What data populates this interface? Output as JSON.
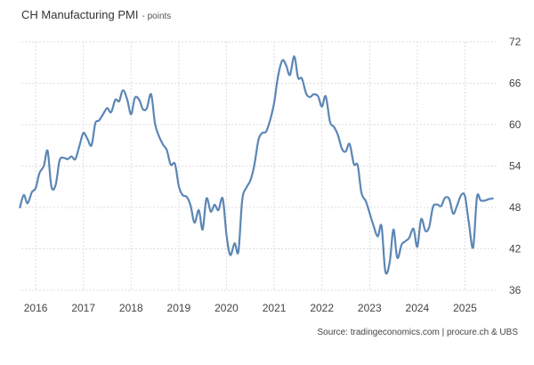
{
  "header": {
    "title": "CH Manufacturing PMI",
    "unit": "- points"
  },
  "footer": {
    "source": "Source: tradingeconomics.com | procure.ch & UBS"
  },
  "colors": {
    "line": "#5b86b5",
    "grid": "#dddddd",
    "axis_text": "#444444"
  },
  "chart_data": {
    "type": "line",
    "title": "CH Manufacturing PMI",
    "ylabel": "points",
    "ylim": [
      36,
      72
    ],
    "yticks": [
      36,
      42,
      48,
      54,
      60,
      66,
      72
    ],
    "xlim": [
      2015.7,
      2025.7
    ],
    "xticks": [
      2016,
      2017,
      2018,
      2019,
      2020,
      2021,
      2022,
      2023,
      2024,
      2025
    ],
    "grid": true,
    "y_axis_side": "right",
    "series": [
      {
        "x": [
          2015.67,
          2015.75,
          2015.83,
          2015.92,
          2016.0,
          2016.08,
          2016.17,
          2016.25,
          2016.33,
          2016.42,
          2016.5,
          2016.58,
          2016.67,
          2016.75,
          2016.83,
          2016.92,
          2017.0,
          2017.08,
          2017.17,
          2017.25,
          2017.33,
          2017.42,
          2017.5,
          2017.58,
          2017.67,
          2017.75,
          2017.83,
          2017.92,
          2018.0,
          2018.08,
          2018.17,
          2018.25,
          2018.33,
          2018.42,
          2018.5,
          2018.58,
          2018.67,
          2018.75,
          2018.83,
          2018.92,
          2019.0,
          2019.08,
          2019.17,
          2019.25,
          2019.33,
          2019.42,
          2019.5,
          2019.58,
          2019.67,
          2019.75,
          2019.83,
          2019.92,
          2020.0,
          2020.08,
          2020.17,
          2020.25,
          2020.33,
          2020.42,
          2020.5,
          2020.58,
          2020.67,
          2020.75,
          2020.83,
          2020.92,
          2021.0,
          2021.08,
          2021.17,
          2021.25,
          2021.33,
          2021.42,
          2021.5,
          2021.58,
          2021.67,
          2021.75,
          2021.83,
          2021.92,
          2022.0,
          2022.08,
          2022.17,
          2022.25,
          2022.33,
          2022.42,
          2022.5,
          2022.58,
          2022.67,
          2022.75,
          2022.83,
          2022.92,
          2023.0,
          2023.08,
          2023.17,
          2023.25,
          2023.33,
          2023.42,
          2023.5,
          2023.58,
          2023.67,
          2023.75,
          2023.83,
          2023.92,
          2024.0,
          2024.08,
          2024.17,
          2024.25,
          2024.33,
          2024.42,
          2024.5,
          2024.58,
          2024.67,
          2024.75,
          2024.83,
          2024.92,
          2025.0,
          2025.08,
          2025.17,
          2025.25,
          2025.33,
          2025.42,
          2025.5,
          2025.58
        ],
        "values": [
          48.0,
          49.8,
          48.6,
          50.2,
          50.8,
          53.0,
          54.0,
          56.2,
          51.0,
          51.3,
          54.8,
          55.2,
          55.0,
          55.4,
          55.0,
          57.0,
          58.8,
          58.0,
          57.0,
          60.2,
          60.6,
          61.6,
          62.4,
          61.8,
          63.6,
          63.4,
          65.0,
          63.6,
          61.5,
          63.9,
          63.6,
          62.2,
          62.4,
          64.4,
          60.2,
          58.4,
          57.1,
          56.3,
          54.2,
          54.3,
          51.1,
          49.8,
          49.5,
          48.2,
          45.8,
          47.6,
          44.8,
          49.3,
          47.4,
          48.4,
          47.6,
          49.3,
          44.0,
          41.1,
          42.8,
          41.6,
          49.1,
          50.9,
          51.9,
          54.0,
          57.8,
          58.8,
          59.0,
          60.8,
          63.2,
          67.0,
          69.3,
          68.6,
          67.2,
          69.9,
          66.8,
          66.7,
          64.5,
          64.0,
          64.4,
          64.1,
          62.6,
          64.1,
          60.4,
          59.7,
          58.6,
          56.5,
          56.1,
          57.2,
          54.3,
          54.1,
          50.1,
          48.9,
          47.2,
          45.4,
          43.8,
          45.3,
          38.7,
          40.0,
          44.8,
          40.7,
          42.6,
          43.1,
          43.6,
          44.9,
          42.3,
          46.3,
          44.6,
          45.2,
          48.1,
          48.4,
          48.2,
          49.4,
          49.2,
          47.1,
          48.2,
          49.8,
          49.6,
          45.8,
          42.2,
          49.5,
          49.0,
          49.0,
          49.2,
          49.3
        ]
      }
    ]
  }
}
